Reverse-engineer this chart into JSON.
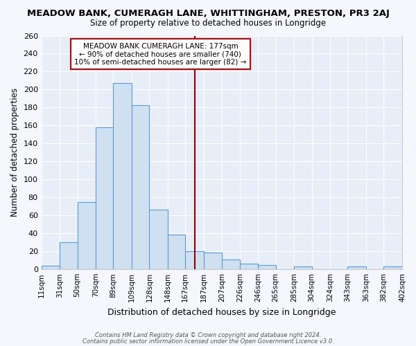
{
  "title": "MEADOW BANK, CUMERAGH LANE, WHITTINGHAM, PRESTON, PR3 2AJ",
  "subtitle": "Size of property relative to detached houses in Longridge",
  "xlabel": "Distribution of detached houses by size in Longridge",
  "ylabel": "Number of detached properties",
  "bin_labels": [
    "11sqm",
    "31sqm",
    "50sqm",
    "70sqm",
    "89sqm",
    "109sqm",
    "128sqm",
    "148sqm",
    "167sqm",
    "187sqm",
    "207sqm",
    "226sqm",
    "246sqm",
    "265sqm",
    "285sqm",
    "304sqm",
    "324sqm",
    "343sqm",
    "363sqm",
    "382sqm",
    "402sqm"
  ],
  "bin_edges": [
    11,
    31,
    50,
    70,
    89,
    109,
    128,
    148,
    167,
    187,
    207,
    226,
    246,
    265,
    285,
    304,
    324,
    343,
    363,
    382,
    402
  ],
  "bar_heights": [
    4,
    30,
    75,
    158,
    207,
    183,
    66,
    39,
    20,
    19,
    11,
    6,
    5,
    0,
    3,
    0,
    0,
    3,
    0,
    3
  ],
  "bar_color": "#cfe0f1",
  "bar_edge_color": "#5b9bd5",
  "vline_x": 177,
  "vline_color": "#8b0000",
  "ylim": [
    0,
    260
  ],
  "yticks": [
    0,
    20,
    40,
    60,
    80,
    100,
    120,
    140,
    160,
    180,
    200,
    220,
    240,
    260
  ],
  "annotation_title": "MEADOW BANK CUMERAGH LANE: 177sqm",
  "annotation_line1": "← 90% of detached houses are smaller (740)",
  "annotation_line2": "10% of semi-detached houses are larger (82) →",
  "annotation_box_color": "#ffffff",
  "annotation_box_edge": "#cc0000",
  "plot_bg": "#e8eef7",
  "grid_color": "#ffffff",
  "fig_bg": "#f5f7fc",
  "footer1": "Contains HM Land Registry data © Crown copyright and database right 2024.",
  "footer2": "Contains public sector information licensed under the Open Government Licence v3.0."
}
